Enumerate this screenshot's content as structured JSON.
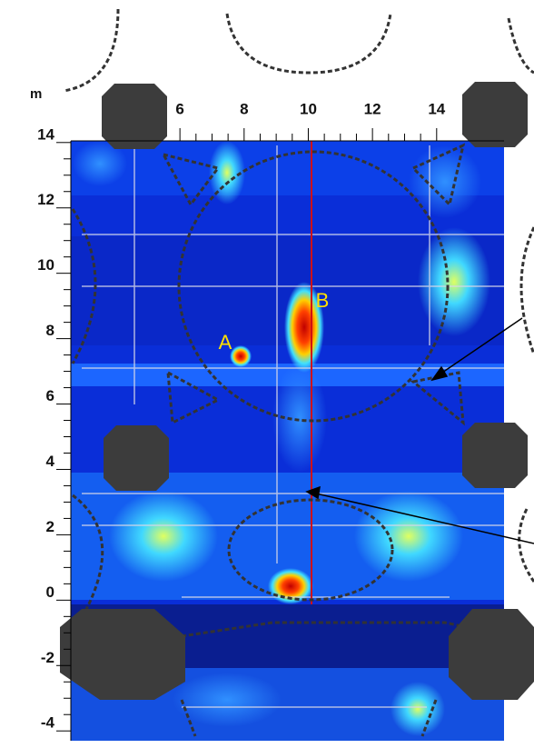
{
  "chart_data": {
    "type": "heatmap",
    "axis_unit": "m",
    "xlim": [
      2.6,
      16.1
    ],
    "xticks": [
      6,
      8,
      10,
      12,
      14
    ],
    "ylim": [
      -4.3,
      14.05
    ],
    "yticks": [
      -4,
      -2,
      0,
      2,
      4,
      6,
      8,
      10,
      12,
      14
    ],
    "annotations": [
      {
        "text": "A"
      },
      {
        "text": "B"
      }
    ]
  }
}
